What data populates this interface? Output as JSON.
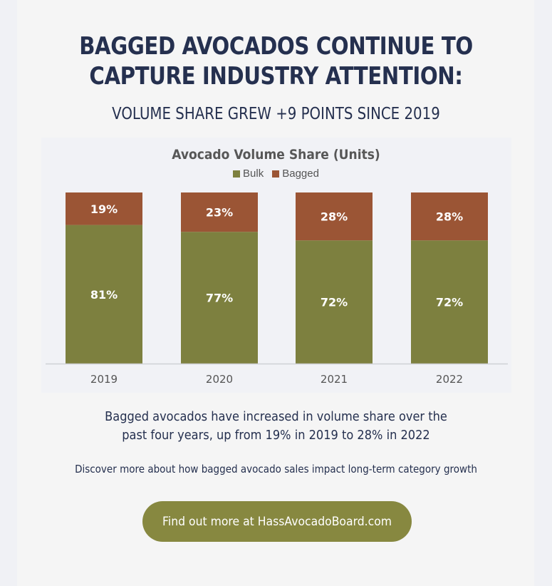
{
  "header": {
    "headline_line1": "BAGGED AVOCADOS CONTINUE TO",
    "headline_line2": "CAPTURE INDUSTRY ATTENTION:",
    "subheadline": "VOLUME SHARE GREW +9 POINTS SINCE 2019"
  },
  "chart_data": {
    "type": "bar",
    "stacked": true,
    "title": "Avocado Volume Share (Units)",
    "categories": [
      "2019",
      "2020",
      "2021",
      "2022"
    ],
    "series": [
      {
        "name": "Bulk",
        "color": "#7d803f",
        "values": [
          81,
          77,
          72,
          72
        ],
        "labels": [
          "81%",
          "77%",
          "72%",
          "72%"
        ]
      },
      {
        "name": "Bagged",
        "color": "#9b5535",
        "values": [
          19,
          23,
          28,
          28
        ],
        "labels": [
          "19%",
          "23%",
          "28%",
          "28%"
        ]
      }
    ],
    "xlabel": "",
    "ylabel": "",
    "ylim": [
      0,
      100
    ],
    "unit": "%",
    "grid": false,
    "legend_position": "top-center"
  },
  "body": {
    "summary_line1": "Bagged avocados have increased in volume share over the",
    "summary_line2": "past four years, up from 19% in 2019 to 28% in 2022",
    "discover": "Discover more about how bagged avocado sales impact long-term category growth"
  },
  "cta": {
    "label": "Find out more at HassAvocadoBoard.com",
    "color": "#878840"
  }
}
